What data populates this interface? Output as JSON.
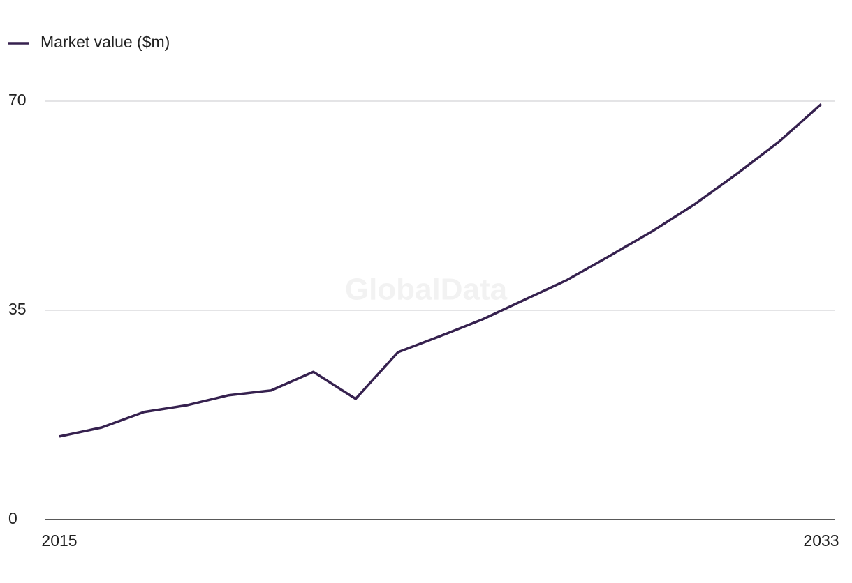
{
  "chart_data": {
    "type": "line",
    "watermark": "GlobalData",
    "x": [
      2015,
      2016,
      2017,
      2018,
      2019,
      2020,
      2021,
      2022,
      2023,
      2024,
      2025,
      2026,
      2027,
      2028,
      2029,
      2030,
      2031,
      2032,
      2033
    ],
    "series": [
      {
        "name": "Market value ($m)",
        "color": "#36214f",
        "values": [
          13.9,
          15.4,
          18.0,
          19.1,
          20.8,
          21.6,
          24.7,
          20.2,
          28.0,
          30.7,
          33.5,
          36.8,
          40.1,
          44.1,
          48.2,
          52.7,
          57.8,
          63.2,
          69.5
        ]
      }
    ],
    "xlim": [
      2015,
      2033
    ],
    "xticks": [
      2015,
      2033
    ],
    "ylim": [
      0,
      70
    ],
    "yticks": [
      0,
      35,
      70
    ],
    "grid": true,
    "legend": "top-left"
  }
}
